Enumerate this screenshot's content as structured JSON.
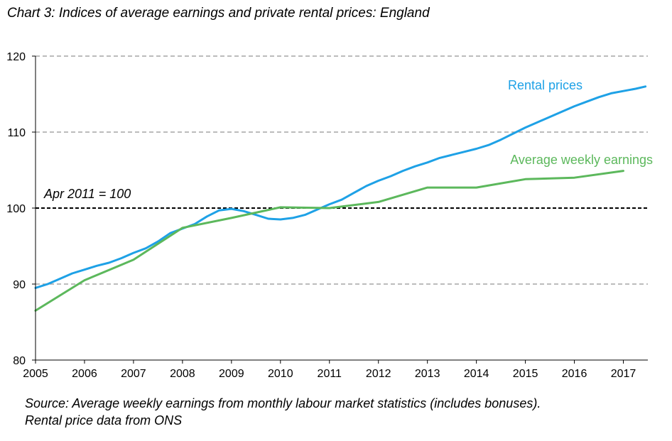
{
  "title": "Chart 3: Indices of average earnings and private rental prices: England",
  "source_line1": "Source: Average weekly earnings from monthly labour market statistics (includes bonuses).",
  "source_line2": "Rental price data from ONS",
  "colors": {
    "rental": "#1ea1e6",
    "earnings": "#5cb85c",
    "grid": "#a6a6a6",
    "reference": "#000000"
  },
  "chart_data": {
    "type": "line",
    "title": "Chart 3: Indices of average earnings and private rental prices: England",
    "xlabel": "",
    "ylabel": "",
    "xlim": [
      2005,
      2017.5
    ],
    "ylim": [
      80,
      120
    ],
    "x_ticks": [
      "2005",
      "2006",
      "2007",
      "2008",
      "2009",
      "2010",
      "2011",
      "2012",
      "2013",
      "2014",
      "2015",
      "2016",
      "2017"
    ],
    "y_ticks": [
      "80",
      "90",
      "100",
      "110",
      "120"
    ],
    "grid": true,
    "reference_line": {
      "y": 100,
      "label": "Apr 2011 = 100"
    },
    "series": [
      {
        "name": "Rental prices",
        "x": [
          2005.0,
          2005.25,
          2005.5,
          2005.75,
          2006.0,
          2006.25,
          2006.5,
          2006.75,
          2007.0,
          2007.25,
          2007.5,
          2007.75,
          2008.0,
          2008.25,
          2008.5,
          2008.75,
          2009.0,
          2009.25,
          2009.5,
          2009.75,
          2010.0,
          2010.25,
          2010.5,
          2010.75,
          2011.0,
          2011.25,
          2011.5,
          2011.75,
          2012.0,
          2012.25,
          2012.5,
          2012.75,
          2013.0,
          2013.25,
          2013.5,
          2013.75,
          2014.0,
          2014.25,
          2014.5,
          2014.75,
          2015.0,
          2015.25,
          2015.5,
          2015.75,
          2016.0,
          2016.25,
          2016.5,
          2016.75,
          2017.0,
          2017.25,
          2017.45
        ],
        "values": [
          89.5,
          90.0,
          90.7,
          91.4,
          91.9,
          92.4,
          92.8,
          93.4,
          94.1,
          94.7,
          95.6,
          96.7,
          97.3,
          97.9,
          98.9,
          99.7,
          99.9,
          99.6,
          99.1,
          98.6,
          98.5,
          98.7,
          99.1,
          99.8,
          100.5,
          101.1,
          102.0,
          102.9,
          103.6,
          104.2,
          104.9,
          105.5,
          106.0,
          106.6,
          107.0,
          107.4,
          107.8,
          108.3,
          109.0,
          109.8,
          110.6,
          111.3,
          112.0,
          112.7,
          113.4,
          114.0,
          114.6,
          115.1,
          115.4,
          115.7,
          116.0
        ]
      },
      {
        "name": "Average weekly earnings",
        "x": [
          2005.0,
          2006.0,
          2007.0,
          2008.0,
          2009.0,
          2010.0,
          2011.0,
          2012.0,
          2013.0,
          2014.0,
          2015.0,
          2016.0,
          2017.0
        ],
        "values": [
          86.5,
          90.5,
          93.2,
          97.4,
          98.7,
          100.1,
          100.0,
          100.8,
          102.7,
          102.7,
          103.8,
          104.0,
          104.9
        ]
      }
    ]
  }
}
